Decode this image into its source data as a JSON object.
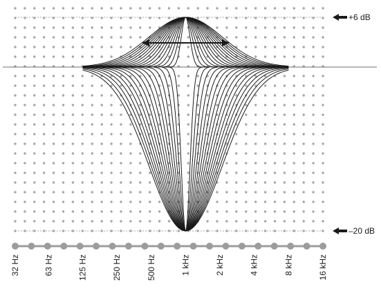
{
  "chart_data": {
    "type": "line",
    "title": "",
    "xlabel": "",
    "ylabel": "",
    "x_scale": "log",
    "x_ticks": [
      "32 Hz",
      "63 Hz",
      "125 Hz",
      "250 Hz",
      "500 Hz",
      "1 kHz",
      "2 kHz",
      "4 kHz",
      "8 kHz",
      "16 kHz"
    ],
    "x_tick_values_hz": [
      32,
      63,
      125,
      250,
      500,
      1000,
      2000,
      4000,
      8000,
      16000
    ],
    "xlim_hz": [
      32,
      16000
    ],
    "center_frequency_hz": 1000,
    "y_markers": [
      {
        "label": "+6 dB",
        "value": 6
      },
      {
        "label": "–20 dB",
        "value": -20
      }
    ],
    "ylim_db": [
      -20,
      6
    ],
    "reference_level_db": 0,
    "boost_peak_db": 6,
    "cut_depth_db": -20,
    "bandwidth_range_octaves": [
      0.3,
      2.5
    ],
    "curves_per_family": 16,
    "grid": "dotted",
    "annotation": "double-headed arrow indicating variable bandwidth"
  },
  "colors": {
    "curve": "#1a1a1a",
    "grid_dot": "#a6a6a6",
    "axis_dot": "#9c9c9c",
    "zero_line": "#6e6e6e"
  }
}
